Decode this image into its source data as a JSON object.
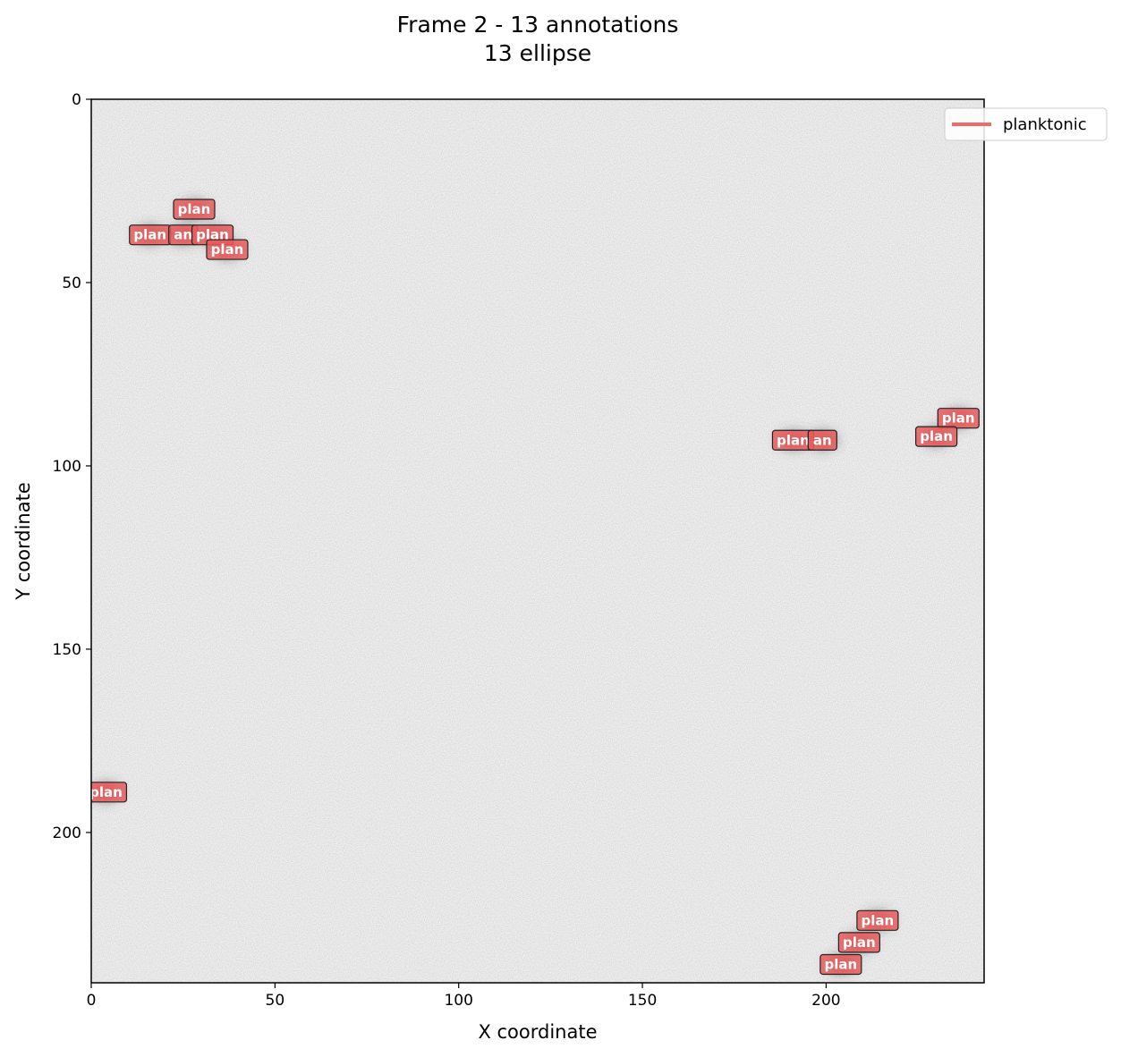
{
  "chart_data": {
    "type": "scatter",
    "title": "Frame 2 - 13 annotations",
    "subtitle": "13 ellipse",
    "xlabel": "X coordinate",
    "ylabel": "Y coordinate",
    "xlim": [
      0,
      243
    ],
    "ylim": [
      241,
      0
    ],
    "y_inverted": true,
    "x_ticks": [
      0,
      50,
      100,
      150,
      200
    ],
    "y_ticks": [
      0,
      50,
      100,
      150,
      200
    ],
    "background": "grayscale noise image",
    "grid": false,
    "legend": {
      "placement": "top-right",
      "entries": [
        {
          "label": "planktonic",
          "color": "#f06a6a"
        }
      ]
    },
    "series": [
      {
        "name": "planktonic",
        "color": "#e85c5c",
        "points": [
          {
            "x": 28,
            "y": 30,
            "label": "plan"
          },
          {
            "x": 16,
            "y": 37,
            "label": "plan"
          },
          {
            "x": 25,
            "y": 37,
            "label": "an"
          },
          {
            "x": 33,
            "y": 37,
            "label": "plan"
          },
          {
            "x": 37,
            "y": 41,
            "label": "plan"
          },
          {
            "x": 191,
            "y": 93,
            "label": "plan"
          },
          {
            "x": 199,
            "y": 93,
            "label": "an"
          },
          {
            "x": 236,
            "y": 87,
            "label": "plan"
          },
          {
            "x": 230,
            "y": 92,
            "label": "plan"
          },
          {
            "x": 4,
            "y": 189,
            "label": "plan"
          },
          {
            "x": 214,
            "y": 224,
            "label": "plan"
          },
          {
            "x": 209,
            "y": 230,
            "label": "plan"
          },
          {
            "x": 204,
            "y": 236,
            "label": "plan"
          }
        ]
      }
    ]
  }
}
